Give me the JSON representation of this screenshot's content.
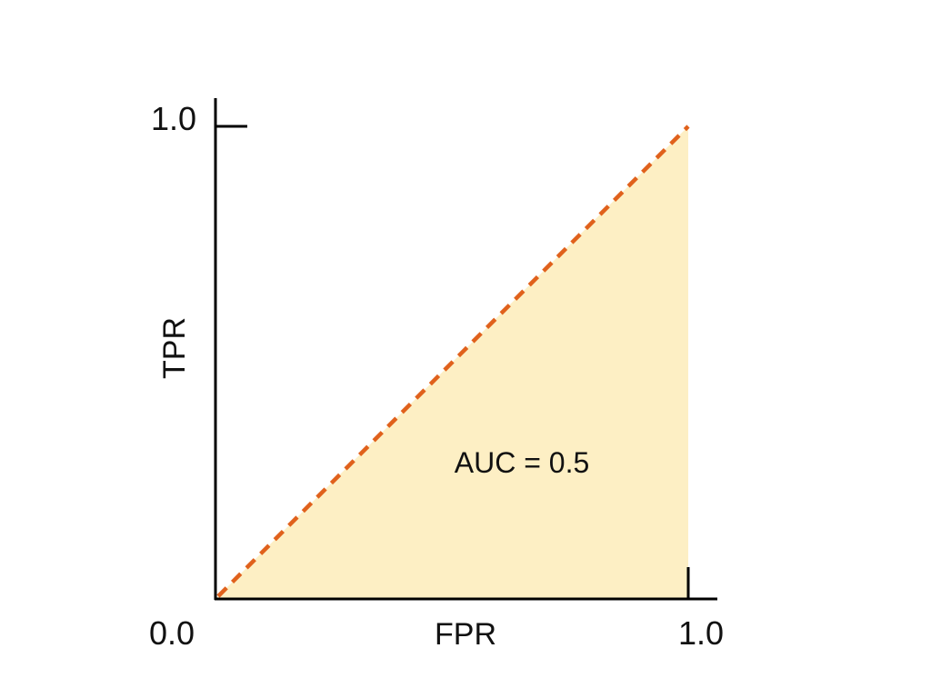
{
  "chart_data": {
    "type": "line",
    "title": "",
    "xlabel": "FPR",
    "ylabel": "TPR",
    "xlim": [
      0.0,
      1.0
    ],
    "ylim": [
      0.0,
      1.0
    ],
    "x_tick_labels": [
      "0.0",
      "1.0"
    ],
    "y_tick_labels": [
      "1.0"
    ],
    "grid": false,
    "series": [
      {
        "x": [
          0.0,
          1.0
        ],
        "y": [
          0.0,
          1.0
        ],
        "style": "dashed",
        "color": "#E0611C",
        "fill_below": true,
        "fill_color": "#FDEFC4"
      }
    ],
    "annotations": [
      {
        "text": "AUC = 0.5"
      }
    ]
  }
}
